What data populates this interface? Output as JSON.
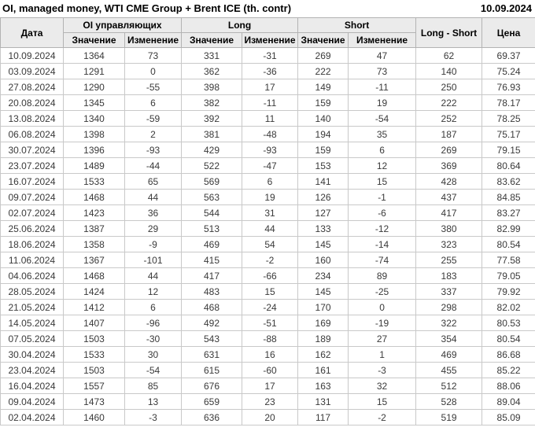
{
  "title": "OI, managed money, WTI CME Group + Brent ICE (th. contr)",
  "report_date": "10.09.2024",
  "chart_data": {
    "type": "table",
    "title": "OI, managed money, WTI CME Group + Brent ICE (th. contr)",
    "report_date": "10.09.2024",
    "header": {
      "date": "Дата",
      "oi_group": "OI управляющих",
      "long_group": "Long",
      "short_group": "Short",
      "value": "Значение",
      "change": "Изменение",
      "long_short": "Long - Short",
      "price": "Цена"
    },
    "rows": [
      {
        "date": "10.09.2024",
        "oi_value": 1364,
        "oi_change": 73,
        "long_value": 331,
        "long_change": -31,
        "short_value": 269,
        "short_change": 47,
        "long_short": 62,
        "price": "69.37"
      },
      {
        "date": "03.09.2024",
        "oi_value": 1291,
        "oi_change": 0,
        "long_value": 362,
        "long_change": -36,
        "short_value": 222,
        "short_change": 73,
        "long_short": 140,
        "price": "75.24"
      },
      {
        "date": "27.08.2024",
        "oi_value": 1290,
        "oi_change": -55,
        "long_value": 398,
        "long_change": 17,
        "short_value": 149,
        "short_change": -11,
        "long_short": 250,
        "price": "76.93"
      },
      {
        "date": "20.08.2024",
        "oi_value": 1345,
        "oi_change": 6,
        "long_value": 382,
        "long_change": -11,
        "short_value": 159,
        "short_change": 19,
        "long_short": 222,
        "price": "78.17"
      },
      {
        "date": "13.08.2024",
        "oi_value": 1340,
        "oi_change": -59,
        "long_value": 392,
        "long_change": 11,
        "short_value": 140,
        "short_change": -54,
        "long_short": 252,
        "price": "78.25"
      },
      {
        "date": "06.08.2024",
        "oi_value": 1398,
        "oi_change": 2,
        "long_value": 381,
        "long_change": -48,
        "short_value": 194,
        "short_change": 35,
        "long_short": 187,
        "price": "75.17"
      },
      {
        "date": "30.07.2024",
        "oi_value": 1396,
        "oi_change": -93,
        "long_value": 429,
        "long_change": -93,
        "short_value": 159,
        "short_change": 6,
        "long_short": 269,
        "price": "79.15"
      },
      {
        "date": "23.07.2024",
        "oi_value": 1489,
        "oi_change": -44,
        "long_value": 522,
        "long_change": -47,
        "short_value": 153,
        "short_change": 12,
        "long_short": 369,
        "price": "80.64"
      },
      {
        "date": "16.07.2024",
        "oi_value": 1533,
        "oi_change": 65,
        "long_value": 569,
        "long_change": 6,
        "short_value": 141,
        "short_change": 15,
        "long_short": 428,
        "price": "83.62"
      },
      {
        "date": "09.07.2024",
        "oi_value": 1468,
        "oi_change": 44,
        "long_value": 563,
        "long_change": 19,
        "short_value": 126,
        "short_change": -1,
        "long_short": 437,
        "price": "84.85"
      },
      {
        "date": "02.07.2024",
        "oi_value": 1423,
        "oi_change": 36,
        "long_value": 544,
        "long_change": 31,
        "short_value": 127,
        "short_change": -6,
        "long_short": 417,
        "price": "83.27"
      },
      {
        "date": "25.06.2024",
        "oi_value": 1387,
        "oi_change": 29,
        "long_value": 513,
        "long_change": 44,
        "short_value": 133,
        "short_change": -12,
        "long_short": 380,
        "price": "82.99"
      },
      {
        "date": "18.06.2024",
        "oi_value": 1358,
        "oi_change": -9,
        "long_value": 469,
        "long_change": 54,
        "short_value": 145,
        "short_change": -14,
        "long_short": 323,
        "price": "80.54"
      },
      {
        "date": "11.06.2024",
        "oi_value": 1367,
        "oi_change": -101,
        "long_value": 415,
        "long_change": -2,
        "short_value": 160,
        "short_change": -74,
        "long_short": 255,
        "price": "77.58"
      },
      {
        "date": "04.06.2024",
        "oi_value": 1468,
        "oi_change": 44,
        "long_value": 417,
        "long_change": -66,
        "short_value": 234,
        "short_change": 89,
        "long_short": 183,
        "price": "79.05"
      },
      {
        "date": "28.05.2024",
        "oi_value": 1424,
        "oi_change": 12,
        "long_value": 483,
        "long_change": 15,
        "short_value": 145,
        "short_change": -25,
        "long_short": 337,
        "price": "79.92"
      },
      {
        "date": "21.05.2024",
        "oi_value": 1412,
        "oi_change": 6,
        "long_value": 468,
        "long_change": -24,
        "short_value": 170,
        "short_change": 0,
        "long_short": 298,
        "price": "82.02"
      },
      {
        "date": "14.05.2024",
        "oi_value": 1407,
        "oi_change": -96,
        "long_value": 492,
        "long_change": -51,
        "short_value": 169,
        "short_change": -19,
        "long_short": 322,
        "price": "80.53"
      },
      {
        "date": "07.05.2024",
        "oi_value": 1503,
        "oi_change": -30,
        "long_value": 543,
        "long_change": -88,
        "short_value": 189,
        "short_change": 27,
        "long_short": 354,
        "price": "80.54"
      },
      {
        "date": "30.04.2024",
        "oi_value": 1533,
        "oi_change": 30,
        "long_value": 631,
        "long_change": 16,
        "short_value": 162,
        "short_change": 1,
        "long_short": 469,
        "price": "86.68"
      },
      {
        "date": "23.04.2024",
        "oi_value": 1503,
        "oi_change": -54,
        "long_value": 615,
        "long_change": -60,
        "short_value": 161,
        "short_change": -3,
        "long_short": 455,
        "price": "85.22"
      },
      {
        "date": "16.04.2024",
        "oi_value": 1557,
        "oi_change": 85,
        "long_value": 676,
        "long_change": 17,
        "short_value": 163,
        "short_change": 32,
        "long_short": 512,
        "price": "88.06"
      },
      {
        "date": "09.04.2024",
        "oi_value": 1473,
        "oi_change": 13,
        "long_value": 659,
        "long_change": 23,
        "short_value": 131,
        "short_change": 15,
        "long_short": 528,
        "price": "89.04"
      },
      {
        "date": "02.04.2024",
        "oi_value": 1460,
        "oi_change": -3,
        "long_value": 636,
        "long_change": 20,
        "short_value": 117,
        "short_change": -2,
        "long_short": 519,
        "price": "85.09"
      }
    ]
  },
  "colors": {
    "positive_change": "#009900",
    "negative_change": "#cc0000",
    "header_background": "#ebebeb",
    "grid_border": "#c9c9c9",
    "text": "#3a3a3a"
  }
}
